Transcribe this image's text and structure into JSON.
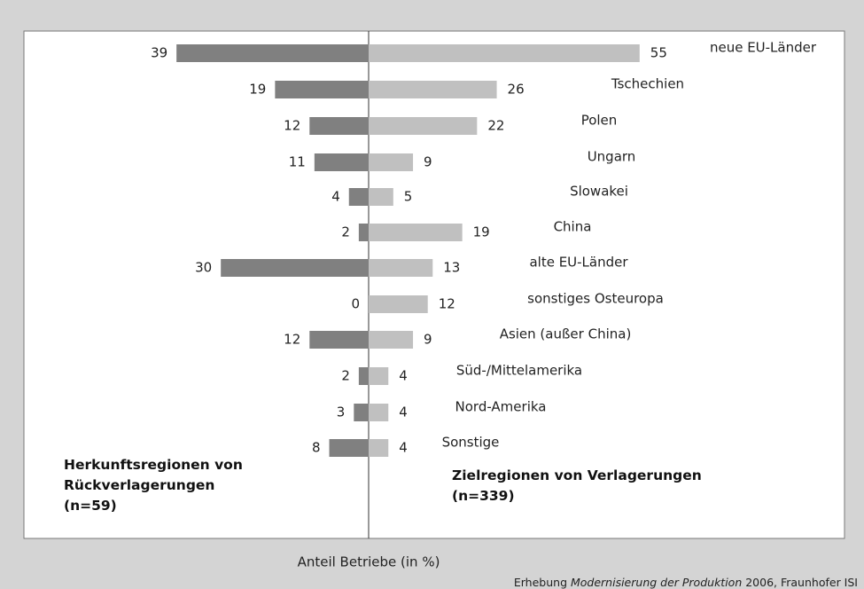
{
  "chart_data": {
    "type": "butterfly-bar",
    "categories": [
      "neue EU-Länder",
      "Tschechien",
      "Polen",
      "Ungarn",
      "Slowakei",
      "China",
      "alte EU-Länder",
      "sonstiges Osteuropa",
      "Asien (außer China)",
      "Süd-/Mittelamerika",
      "Nord-Amerika",
      "Sonstige"
    ],
    "series": [
      {
        "name": "Herkunftsregionen von Rückverlagerungen",
        "n": "(n=59)",
        "color": "#808080",
        "side": "left",
        "values": [
          39,
          19,
          12,
          11,
          4,
          2,
          30,
          0,
          12,
          2,
          3,
          8
        ]
      },
      {
        "name": "Zielregionen von Verlagerungen",
        "n": "(n=339)",
        "color": "#c0c0c0",
        "side": "right",
        "values": [
          55,
          26,
          22,
          9,
          5,
          19,
          13,
          12,
          9,
          4,
          4,
          4
        ]
      }
    ],
    "x_label": "Anteil Betriebe  (in %)",
    "source": {
      "prefix": "Erhebung ",
      "italic": "Modernisierung der Produktion",
      "suffix": " 2006, Fraunhofer ISI"
    }
  }
}
